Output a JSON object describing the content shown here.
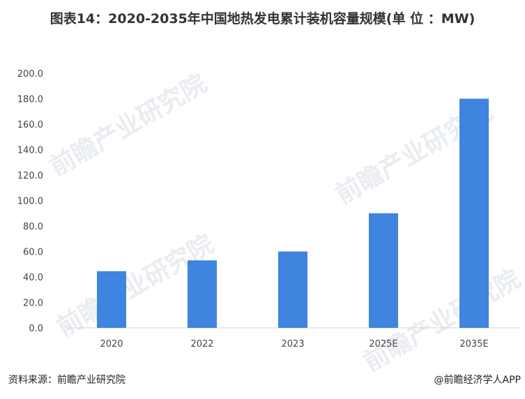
{
  "title": "图表14：2020-2035年中国地热发电累计装机容量规模(单 位 ：MW)",
  "source": "资料来源：前瞻产业研究院",
  "credit": "@前瞻经济学人APP",
  "watermark": "前瞻产业研究院",
  "chart_data": {
    "type": "bar",
    "title": "图表14：2020-2035年中国地热发电累计装机容量规模(单 位 ：MW)",
    "categories": [
      "2020",
      "2022",
      "2023",
      "2025E",
      "2035E"
    ],
    "values": [
      44.5,
      53,
      60,
      90,
      180
    ],
    "ylim": [
      0,
      200
    ],
    "yticks": [
      "0.0",
      "20.0",
      "40.0",
      "60.0",
      "80.0",
      "100.0",
      "120.0",
      "140.0",
      "160.0",
      "180.0",
      "200.0"
    ],
    "grid": false,
    "bar_color": "#3f84df"
  }
}
